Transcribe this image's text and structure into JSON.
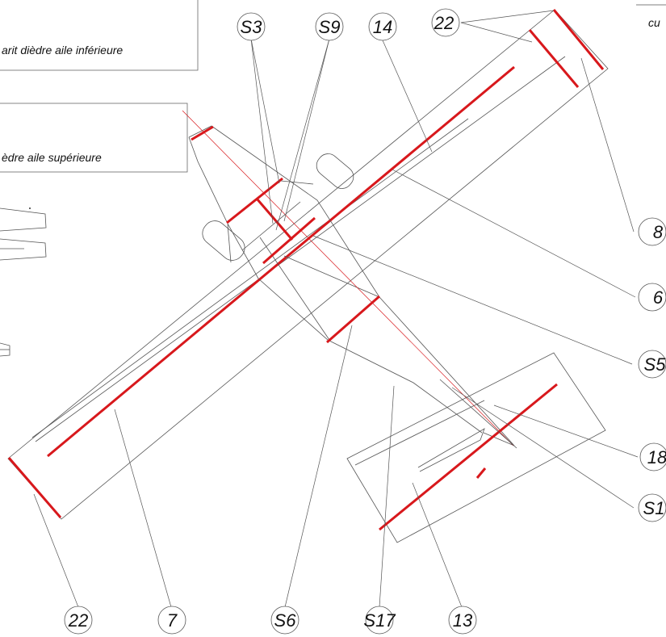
{
  "diagram": {
    "notes": [
      "arit dièdre aile inférieure",
      "èdre aile supérieure",
      "cu"
    ],
    "callouts": [
      "S3",
      "S9",
      "14",
      "22",
      "8",
      "6",
      "S5",
      "18",
      "S1",
      "22",
      "7",
      "S6",
      "S17",
      "13"
    ],
    "colors": {
      "marks": "#d8181c",
      "lines": "#555555"
    }
  }
}
